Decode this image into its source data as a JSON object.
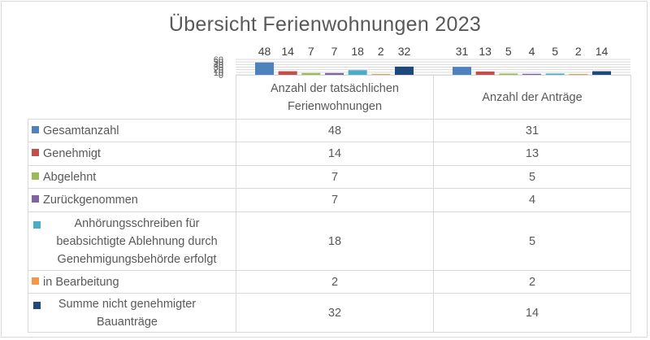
{
  "chart_data": {
    "type": "bar",
    "title": "Übersicht Ferienwohnungen 2023",
    "categories": [
      "Anzahl der tatsächlichen Ferienwohnungen",
      "Anzahl der Anträge"
    ],
    "ylim": [
      0,
      60
    ],
    "y_ticks": [
      "0",
      "10",
      "20",
      "30",
      "40",
      "50",
      "60"
    ],
    "grid": true,
    "legend": "data-table",
    "series": [
      {
        "name": "Gesamtanzahl",
        "color": "#4f81bd",
        "values": [
          48,
          31
        ]
      },
      {
        "name": "Genehmigt",
        "color": "#c0504d",
        "values": [
          14,
          13
        ]
      },
      {
        "name": "Abgelehnt",
        "color": "#9bbb59",
        "values": [
          7,
          5
        ]
      },
      {
        "name": "Zurückgenommen",
        "color": "#8064a2",
        "values": [
          7,
          4
        ]
      },
      {
        "name": "Anhörungsschreiben für beabsichtigte Ablehnung  durch Genehmigungsbehörde erfolgt",
        "color": "#4bacc6",
        "values": [
          18,
          5
        ]
      },
      {
        "name": "in Bearbeitung",
        "color": "#f79646",
        "values": [
          2,
          2
        ]
      },
      {
        "name": "Summe nicht genehmigter Bauanträge",
        "color": "#1f497d",
        "values": [
          32,
          14
        ]
      }
    ]
  },
  "table": {
    "col_headers": [
      "Anzahl der tatsächlichen Ferienwohnungen",
      "Anzahl der Anträge"
    ],
    "rows": [
      {
        "label": "Gesamtanzahl",
        "values": [
          "48",
          "31"
        ]
      },
      {
        "label": "Genehmigt",
        "values": [
          "14",
          "13"
        ]
      },
      {
        "label": "Abgelehnt",
        "values": [
          "7",
          "5"
        ]
      },
      {
        "label": "Zurückgenommen",
        "values": [
          "7",
          "4"
        ]
      },
      {
        "label": "Anhörungsschreiben für beabsichtigte Ablehnung  durch Genehmigungsbehörde erfolgt",
        "values": [
          "18",
          "5"
        ]
      },
      {
        "label": "in Bearbeitung",
        "values": [
          "2",
          "2"
        ]
      },
      {
        "label": "Summe nicht genehmigter Bauanträge",
        "values": [
          "32",
          "14"
        ]
      }
    ]
  }
}
